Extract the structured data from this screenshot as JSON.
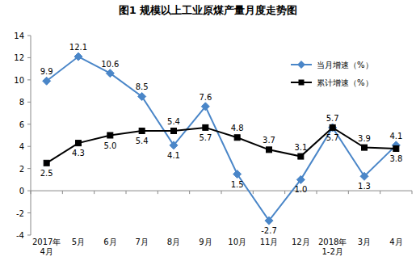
{
  "chart_data": {
    "type": "line",
    "title": "图1  规模以上工业原煤产量月度走势图",
    "categories": [
      "2017年4月",
      "5月",
      "6月",
      "7月",
      "8月",
      "9月",
      "10月",
      "11月",
      "12月",
      "2018年1-2月",
      "3月",
      "4月"
    ],
    "series": [
      {
        "name": "当月增速（%）",
        "color": "#4a86c8",
        "marker": "diamond",
        "line_style": "solid",
        "values": [
          9.9,
          12.1,
          10.6,
          8.5,
          4.1,
          7.6,
          1.5,
          -2.7,
          1.0,
          5.7,
          1.3,
          4.1
        ],
        "value_labels": [
          "9.9",
          "12.1",
          "10.6",
          "8.5",
          "4.1",
          "7.6",
          "1.5",
          "-2.7",
          "1.0",
          "5.7",
          "1.3",
          "4.1"
        ]
      },
      {
        "name": "累计增速（%）",
        "color": "#000000",
        "marker": "square",
        "line_style": "solid",
        "values": [
          2.5,
          4.3,
          5.0,
          5.4,
          5.4,
          5.7,
          4.8,
          3.7,
          3.1,
          5.7,
          3.9,
          3.8
        ],
        "value_labels": [
          "2.5",
          "4.3",
          "5.0",
          "5.4",
          "5.4",
          "5.7",
          "4.8",
          "3.7",
          "3.1",
          "5.7",
          "3.9",
          "3.8"
        ]
      }
    ],
    "ylim": [
      -4,
      14
    ],
    "yticks": [
      -4,
      -2,
      0,
      2,
      4,
      6,
      8,
      10,
      12,
      14
    ],
    "grid": false,
    "legend": "upper right",
    "data_labels": true
  }
}
